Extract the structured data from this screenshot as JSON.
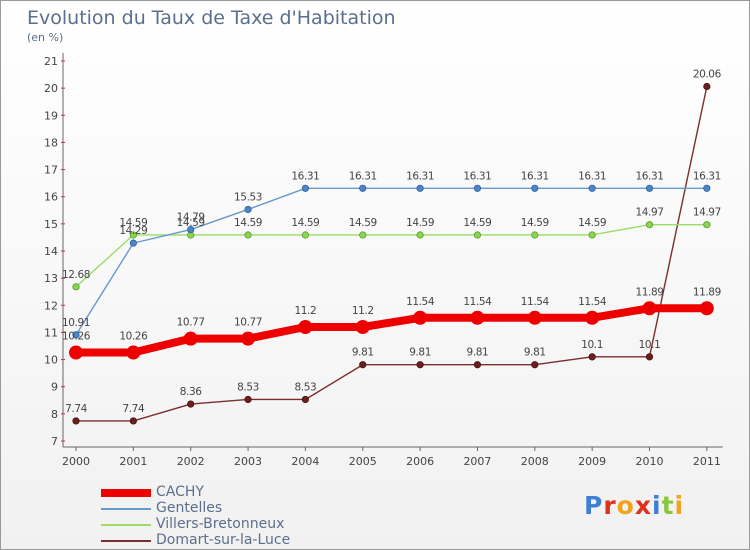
{
  "header": {
    "title": "Evolution du Taux de Taxe d'Habitation",
    "subtitle": "(en %)"
  },
  "logo": {
    "text": "Proxiti"
  },
  "chart_data": {
    "type": "line",
    "title": "Evolution du Taux de Taxe d'Habitation",
    "ylabel": "(en %)",
    "xlabel": "",
    "ylim": [
      7,
      21
    ],
    "yticks": [
      7,
      8,
      9,
      10,
      11,
      12,
      13,
      14,
      15,
      16,
      17,
      18,
      19,
      20,
      21
    ],
    "categories": [
      "2000",
      "2001",
      "2002",
      "2003",
      "2004",
      "2005",
      "2006",
      "2007",
      "2008",
      "2009",
      "2010",
      "2011"
    ],
    "grid": false,
    "legend_position": "bottom-left",
    "series": [
      {
        "name": "CACHY",
        "color": "#ee0000",
        "values": [
          10.26,
          10.26,
          10.77,
          10.77,
          11.2,
          11.2,
          11.54,
          11.54,
          11.54,
          11.54,
          11.89,
          11.89
        ],
        "labels": [
          "10.26",
          "10.26",
          "10.77",
          "10.77",
          "11.2",
          "11.2",
          "11.54",
          "11.54",
          "11.54",
          "11.54",
          "11.89",
          "11.89"
        ]
      },
      {
        "name": "Gentelles",
        "color": "#6699cc",
        "values": [
          10.91,
          14.29,
          14.79,
          15.53,
          16.31,
          16.31,
          16.31,
          16.31,
          16.31,
          16.31,
          16.31,
          16.31
        ],
        "labels": [
          "10.91",
          "14.29",
          "14.79",
          "15.53",
          "16.31",
          "16.31",
          "16.31",
          "16.31",
          "16.31",
          "16.31",
          "16.31",
          "16.31"
        ]
      },
      {
        "name": "Villers-Bretonneux",
        "color": "#99dd66",
        "values": [
          12.68,
          14.59,
          14.59,
          14.59,
          14.59,
          14.59,
          14.59,
          14.59,
          14.59,
          14.59,
          14.97,
          14.97
        ],
        "labels": [
          "12.68",
          "14.59",
          "14.59",
          "14.59",
          "14.59",
          "14.59",
          "14.59",
          "14.59",
          "14.59",
          "14.59",
          "14.97",
          "14.97"
        ]
      },
      {
        "name": "Domart-sur-la-Luce",
        "color": "#7a2e2e",
        "values": [
          7.74,
          7.74,
          8.36,
          8.53,
          8.53,
          9.81,
          9.81,
          9.81,
          9.81,
          10.1,
          10.1,
          20.06
        ],
        "labels": [
          "7.74",
          "7.74",
          "8.36",
          "8.53",
          "8.53",
          "9.81",
          "9.81",
          "9.81",
          "9.81",
          "10.1",
          "10.1",
          "20.06"
        ]
      }
    ]
  }
}
